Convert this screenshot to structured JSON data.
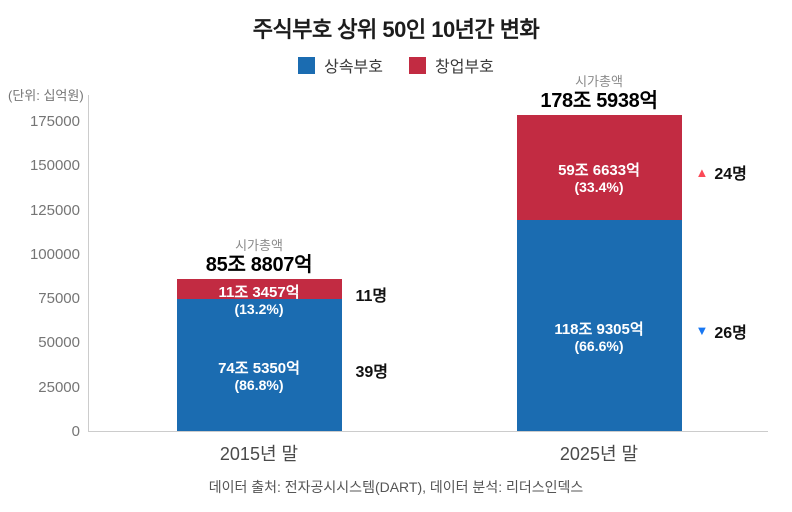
{
  "chart_data": {
    "type": "bar",
    "stacked": true,
    "title": "주식부호 상위 50인 10년간 변화",
    "unit": "(단위: 십억원)",
    "grid": false,
    "legend_position": "top",
    "ylim": [
      0,
      175000
    ],
    "y_ticks": [
      0,
      25000,
      50000,
      75000,
      100000,
      125000,
      150000,
      175000
    ],
    "categories": [
      "2015년 말",
      "2025년 말"
    ],
    "series": [
      {
        "name": "상속부호",
        "color": "#1b6cb1",
        "values": [
          74535.0,
          118930.5
        ],
        "value_labels": [
          "74조 5350억",
          "118조 9305억"
        ],
        "pct_labels": [
          "(86.8%)",
          "(66.6%)"
        ]
      },
      {
        "name": "창업부호",
        "color": "#c22b42",
        "values": [
          11345.7,
          59663.3
        ],
        "value_labels": [
          "11조 3457억",
          "59조 6633억"
        ],
        "pct_labels": [
          "(13.2%)",
          "(33.4%)"
        ]
      }
    ],
    "totals": {
      "caption": "시가총액",
      "values": [
        "85조 8807억",
        "178조 5938억"
      ],
      "numeric": [
        85880.7,
        178593.8
      ]
    },
    "annotations": [
      {
        "bar": 0,
        "series": 1,
        "triangle": null,
        "color": null,
        "label": "11명"
      },
      {
        "bar": 0,
        "series": 0,
        "triangle": null,
        "color": null,
        "label": "39명"
      },
      {
        "bar": 1,
        "series": 1,
        "triangle": "up",
        "color": "#fb4a57",
        "label": "24명"
      },
      {
        "bar": 1,
        "series": 0,
        "triangle": "down",
        "color": "#1877f2",
        "label": "26명"
      }
    ]
  },
  "footer": {
    "source_text": "데이터 출처: 전자공시시스템(DART), 데이터 분석: 리더스인덱스"
  }
}
